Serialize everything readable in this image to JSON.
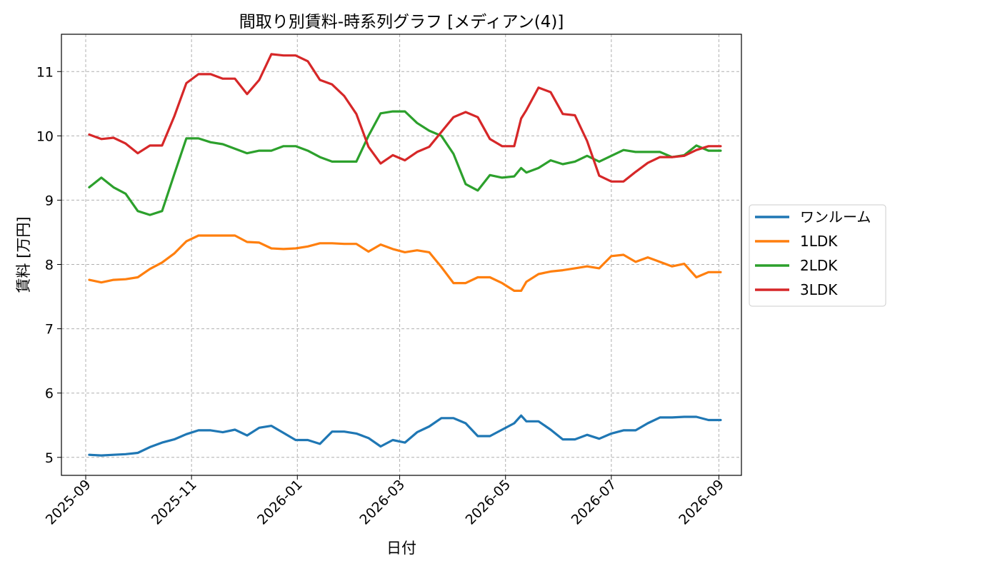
{
  "chart_data": {
    "type": "line",
    "title": "間取り別賃料-時系列グラフ [メディアン(4)]",
    "xlabel": "日付",
    "ylabel": "賃料 [万円]",
    "ylim": [
      4.72,
      11.58
    ],
    "xlim": [
      "2025-08-18",
      "2026-09-14"
    ],
    "grid": true,
    "legend_position": "right",
    "x_ticks": [
      "2025-09",
      "2025-11",
      "2026-01",
      "2026-03",
      "2026-05",
      "2026-07",
      "2026-09"
    ],
    "y_ticks": [
      "5",
      "6",
      "7",
      "8",
      "9",
      "10",
      "11"
    ],
    "x": [
      "2025-09-03",
      "2025-09-10",
      "2025-09-17",
      "2025-09-24",
      "2025-10-01",
      "2025-10-08",
      "2025-10-15",
      "2025-10-22",
      "2025-10-29",
      "2025-11-05",
      "2025-11-12",
      "2025-11-19",
      "2025-11-26",
      "2025-12-03",
      "2025-12-10",
      "2025-12-17",
      "2025-12-24",
      "2025-12-31",
      "2026-01-07",
      "2026-01-14",
      "2026-01-21",
      "2026-01-28",
      "2026-02-04",
      "2026-02-11",
      "2026-02-18",
      "2026-02-25",
      "2026-03-04",
      "2026-03-11",
      "2026-03-18",
      "2026-03-25",
      "2026-04-01",
      "2026-04-08",
      "2026-04-15",
      "2026-04-22",
      "2026-04-29",
      "2026-05-06",
      "2026-05-10",
      "2026-05-13",
      "2026-05-20",
      "2026-05-27",
      "2026-06-03",
      "2026-06-10",
      "2026-06-17",
      "2026-06-24",
      "2026-07-01",
      "2026-07-08",
      "2026-07-15",
      "2026-07-22",
      "2026-07-29",
      "2026-08-05",
      "2026-08-12",
      "2026-08-19",
      "2026-08-26",
      "2026-09-02"
    ],
    "series": [
      {
        "name": "ワンルーム",
        "color": "#1f77b4",
        "values": [
          5.04,
          5.03,
          5.04,
          5.05,
          5.07,
          5.16,
          5.23,
          5.28,
          5.36,
          5.42,
          5.42,
          5.39,
          5.43,
          5.34,
          5.46,
          5.49,
          5.38,
          5.27,
          5.27,
          5.21,
          5.4,
          5.4,
          5.37,
          5.3,
          5.17,
          5.27,
          5.23,
          5.39,
          5.48,
          5.61,
          5.61,
          5.53,
          5.33,
          5.33,
          5.43,
          5.53,
          5.65,
          5.56,
          5.56,
          5.43,
          5.28,
          5.28,
          5.35,
          5.29,
          5.37,
          5.42,
          5.42,
          5.53,
          5.62,
          5.62,
          5.63,
          5.63,
          5.58,
          5.58
        ]
      },
      {
        "name": "1LDK",
        "color": "#ff7f0e",
        "values": [
          7.76,
          7.72,
          7.76,
          7.77,
          7.8,
          7.93,
          8.03,
          8.17,
          8.36,
          8.45,
          8.45,
          8.45,
          8.45,
          8.35,
          8.34,
          8.25,
          8.24,
          8.25,
          8.28,
          8.33,
          8.33,
          8.32,
          8.32,
          8.2,
          8.31,
          8.24,
          8.19,
          8.22,
          8.19,
          7.96,
          7.71,
          7.71,
          7.8,
          7.8,
          7.71,
          7.59,
          7.59,
          7.73,
          7.85,
          7.89,
          7.91,
          7.94,
          7.97,
          7.94,
          8.13,
          8.15,
          8.04,
          8.11,
          8.04,
          7.97,
          8.01,
          7.8,
          7.88,
          7.88
        ]
      },
      {
        "name": "2LDK",
        "color": "#2ca02c",
        "values": [
          9.2,
          9.35,
          9.2,
          9.1,
          8.83,
          8.77,
          8.83,
          9.4,
          9.96,
          9.96,
          9.9,
          9.87,
          9.8,
          9.73,
          9.77,
          9.77,
          9.84,
          9.84,
          9.77,
          9.67,
          9.6,
          9.6,
          9.6,
          10.0,
          10.35,
          10.38,
          10.38,
          10.2,
          10.08,
          10.0,
          9.72,
          9.25,
          9.15,
          9.39,
          9.35,
          9.37,
          9.5,
          9.43,
          9.5,
          9.62,
          9.56,
          9.6,
          9.69,
          9.6,
          9.69,
          9.78,
          9.75,
          9.75,
          9.75,
          9.67,
          9.7,
          9.85,
          9.77,
          9.77
        ]
      },
      {
        "name": "3LDK",
        "color": "#d62728",
        "values": [
          10.02,
          9.95,
          9.97,
          9.88,
          9.73,
          9.85,
          9.85,
          10.3,
          10.82,
          10.96,
          10.96,
          10.89,
          10.89,
          10.65,
          10.87,
          11.27,
          11.25,
          11.25,
          11.16,
          10.87,
          10.8,
          10.62,
          10.34,
          9.83,
          9.57,
          9.7,
          9.62,
          9.75,
          9.83,
          10.06,
          10.29,
          10.37,
          10.29,
          9.95,
          9.84,
          9.84,
          10.27,
          10.4,
          10.75,
          10.68,
          10.34,
          10.32,
          9.92,
          9.38,
          9.29,
          9.29,
          9.44,
          9.58,
          9.67,
          9.67,
          9.69,
          9.78,
          9.84,
          9.84
        ]
      }
    ]
  }
}
